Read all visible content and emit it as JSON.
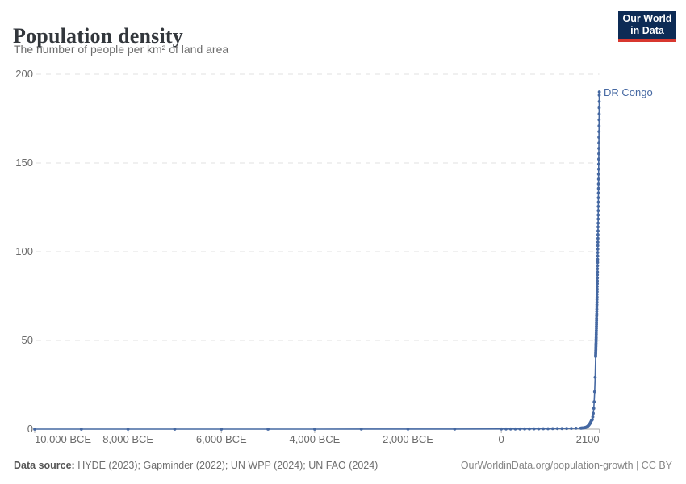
{
  "header": {
    "title": "Population density",
    "subtitle": "The number of people per km² of land area"
  },
  "logo": {
    "line1": "Our World",
    "line2": "in Data",
    "bg_color": "#0d2b55",
    "bar_color": "#d8372f"
  },
  "footer": {
    "data_source_label": "Data source:",
    "data_source_value": " HYDE (2023); Gapminder (2022); UN WPP (2024); UN FAO (2024)",
    "credit": "OurWorldinData.org/population-growth | CC BY"
  },
  "chart_data": {
    "type": "line",
    "title": "Population density",
    "subtitle": "The number of people per km² of land area",
    "entity_label": "DR Congo",
    "ylabel": "",
    "xlabel": "",
    "unit": "people per km² of land area",
    "line_color": "#4568a2",
    "grid": true,
    "gridline_color": "#e0e0e0",
    "axis_color": "#a9a9a9",
    "x_domain": [
      -10000,
      2100
    ],
    "y_domain": [
      0,
      200
    ],
    "y_ticks": [
      0,
      50,
      100,
      150,
      200
    ],
    "x_ticks": [
      {
        "year": -10000,
        "label": "10,000 BCE"
      },
      {
        "year": -8000,
        "label": "8,000 BCE"
      },
      {
        "year": -6000,
        "label": "6,000 BCE"
      },
      {
        "year": -4000,
        "label": "4,000 BCE"
      },
      {
        "year": -2000,
        "label": "2,000 BCE"
      },
      {
        "year": 0,
        "label": "0"
      },
      {
        "year": 2100,
        "label": "2100"
      }
    ],
    "series": [
      {
        "name": "DR Congo",
        "points": [
          [
            -10000,
            0.004
          ],
          [
            -9000,
            0.005
          ],
          [
            -8000,
            0.006
          ],
          [
            -7000,
            0.008
          ],
          [
            -6000,
            0.01
          ],
          [
            -5000,
            0.014
          ],
          [
            -4000,
            0.019
          ],
          [
            -3000,
            0.026
          ],
          [
            -2000,
            0.036
          ],
          [
            -1000,
            0.05
          ],
          [
            0,
            0.07
          ],
          [
            100,
            0.08
          ],
          [
            200,
            0.09
          ],
          [
            300,
            0.1
          ],
          [
            400,
            0.11
          ],
          [
            500,
            0.13
          ],
          [
            600,
            0.14
          ],
          [
            700,
            0.16
          ],
          [
            800,
            0.18
          ],
          [
            900,
            0.21
          ],
          [
            1000,
            0.23
          ],
          [
            1100,
            0.26
          ],
          [
            1200,
            0.3
          ],
          [
            1300,
            0.33
          ],
          [
            1400,
            0.38
          ],
          [
            1500,
            0.42
          ],
          [
            1600,
            0.48
          ],
          [
            1700,
            0.54
          ],
          [
            1710,
            0.56
          ],
          [
            1720,
            0.58
          ],
          [
            1730,
            0.6
          ],
          [
            1740,
            0.63
          ],
          [
            1750,
            0.66
          ],
          [
            1760,
            0.7
          ],
          [
            1770,
            0.74
          ],
          [
            1780,
            0.79
          ],
          [
            1790,
            0.85
          ],
          [
            1800,
            0.92
          ],
          [
            1810,
            1.0
          ],
          [
            1820,
            1.1
          ],
          [
            1830,
            1.25
          ],
          [
            1840,
            1.4
          ],
          [
            1850,
            1.6
          ],
          [
            1860,
            1.85
          ],
          [
            1870,
            2.1
          ],
          [
            1880,
            2.45
          ],
          [
            1890,
            2.8
          ],
          [
            1900,
            3.2
          ],
          [
            1910,
            3.7
          ],
          [
            1920,
            4.2
          ],
          [
            1930,
            4.8
          ],
          [
            1940,
            5.1
          ],
          [
            1950,
            5.4
          ],
          [
            1960,
            6.9
          ],
          [
            1970,
            8.9
          ],
          [
            1980,
            11.7
          ],
          [
            1990,
            15.4
          ],
          [
            2000,
            21.1
          ],
          [
            2010,
            29.2
          ],
          [
            2020,
            40.9
          ],
          [
            2021,
            41.7
          ],
          [
            2022,
            42.5
          ],
          [
            2023,
            43.3
          ],
          [
            2024,
            44.2
          ],
          [
            2025,
            45.0
          ],
          [
            2026,
            45.9
          ],
          [
            2027,
            46.8
          ],
          [
            2028,
            47.7
          ],
          [
            2029,
            48.6
          ],
          [
            2030,
            49.6
          ],
          [
            2031,
            50.6
          ],
          [
            2032,
            51.5
          ],
          [
            2033,
            52.5
          ],
          [
            2034,
            53.6
          ],
          [
            2035,
            54.6
          ],
          [
            2036,
            55.7
          ],
          [
            2037,
            56.8
          ],
          [
            2038,
            57.9
          ],
          [
            2039,
            59.0
          ],
          [
            2040,
            60.2
          ],
          [
            2041,
            61.3
          ],
          [
            2042,
            62.5
          ],
          [
            2043,
            63.8
          ],
          [
            2044,
            65.0
          ],
          [
            2045,
            66.3
          ],
          [
            2046,
            67.6
          ],
          [
            2047,
            68.9
          ],
          [
            2048,
            70.2
          ],
          [
            2049,
            71.6
          ],
          [
            2050,
            73.0
          ],
          [
            2051,
            74.4
          ],
          [
            2052,
            75.9
          ],
          [
            2053,
            77.4
          ],
          [
            2054,
            78.9
          ],
          [
            2055,
            80.4
          ],
          [
            2056,
            82.0
          ],
          [
            2057,
            83.6
          ],
          [
            2058,
            85.2
          ],
          [
            2059,
            86.9
          ],
          [
            2060,
            88.6
          ],
          [
            2061,
            90.3
          ],
          [
            2062,
            92.1
          ],
          [
            2063,
            93.9
          ],
          [
            2064,
            95.7
          ],
          [
            2065,
            97.6
          ],
          [
            2066,
            99.5
          ],
          [
            2067,
            101.4
          ],
          [
            2068,
            103.4
          ],
          [
            2069,
            105.4
          ],
          [
            2070,
            107.5
          ],
          [
            2071,
            109.6
          ],
          [
            2072,
            111.7
          ],
          [
            2073,
            113.9
          ],
          [
            2074,
            116.1
          ],
          [
            2075,
            118.4
          ],
          [
            2076,
            120.7
          ],
          [
            2077,
            123.1
          ],
          [
            2078,
            125.5
          ],
          [
            2079,
            127.9
          ],
          [
            2080,
            130.4
          ],
          [
            2081,
            133.0
          ],
          [
            2082,
            135.6
          ],
          [
            2083,
            138.2
          ],
          [
            2084,
            140.9
          ],
          [
            2085,
            143.7
          ],
          [
            2086,
            146.5
          ],
          [
            2087,
            149.3
          ],
          [
            2088,
            152.2
          ],
          [
            2089,
            155.2
          ],
          [
            2090,
            158.2
          ],
          [
            2091,
            161.3
          ],
          [
            2092,
            164.5
          ],
          [
            2093,
            167.7
          ],
          [
            2094,
            170.9
          ],
          [
            2095,
            174.3
          ],
          [
            2096,
            177.7
          ],
          [
            2097,
            181.1
          ],
          [
            2098,
            184.6
          ],
          [
            2099,
            188.2
          ],
          [
            2100,
            190.0
          ]
        ]
      }
    ]
  }
}
